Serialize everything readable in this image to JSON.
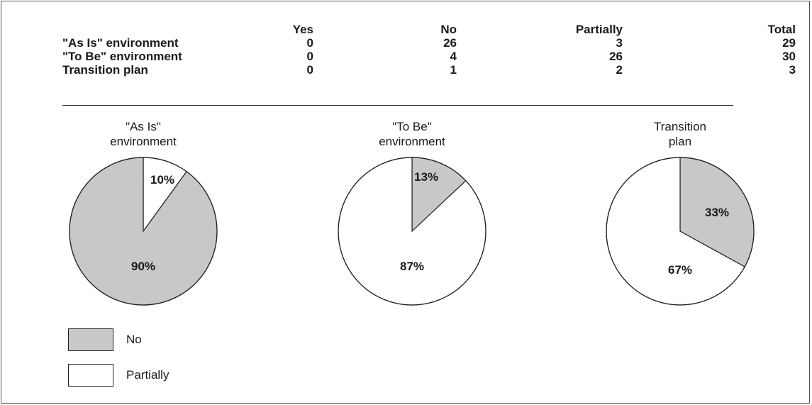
{
  "colors": {
    "no": "#c8c8c8",
    "partially": "#ffffff",
    "stroke": "#222222"
  },
  "table": {
    "headers": [
      "Yes",
      "No",
      "Partially",
      "Total"
    ],
    "rows": [
      {
        "label": "\"As Is\" environment",
        "values": [
          "0",
          "26",
          "3",
          "29"
        ]
      },
      {
        "label": "\"To Be\" environment",
        "values": [
          "0",
          "4",
          "26",
          "30"
        ]
      },
      {
        "label": "Transition plan",
        "values": [
          "0",
          "1",
          "2",
          "3"
        ]
      }
    ]
  },
  "legend": [
    {
      "label": "No",
      "color": "#c8c8c8"
    },
    {
      "label": "Partially",
      "color": "#ffffff"
    }
  ],
  "chart_data": [
    {
      "type": "pie",
      "title_lines": [
        "\"As Is\"",
        "environment"
      ],
      "slices": [
        {
          "name": "Partially",
          "value": 10,
          "label": "10%",
          "color": "#ffffff"
        },
        {
          "name": "No",
          "value": 90,
          "label": "90%",
          "color": "#c8c8c8"
        }
      ]
    },
    {
      "type": "pie",
      "title_lines": [
        "\"To Be\"",
        "environment"
      ],
      "slices": [
        {
          "name": "No",
          "value": 13,
          "label": "13%",
          "color": "#c8c8c8"
        },
        {
          "name": "Partially",
          "value": 87,
          "label": "87%",
          "color": "#ffffff"
        }
      ]
    },
    {
      "type": "pie",
      "title_lines": [
        "Transition",
        "plan"
      ],
      "slices": [
        {
          "name": "No",
          "value": 33,
          "label": "33%",
          "color": "#c8c8c8"
        },
        {
          "name": "Partially",
          "value": 67,
          "label": "67%",
          "color": "#ffffff"
        }
      ]
    }
  ]
}
